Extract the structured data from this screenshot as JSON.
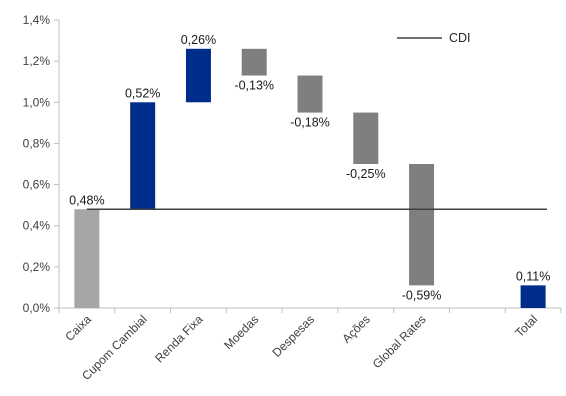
{
  "chart_data": {
    "type": "waterfall",
    "categories": [
      "Caixa",
      "Cupom Cambial",
      "Renda Fixa",
      "Moedas",
      "Despesas",
      "Ações",
      "Global Rates",
      "",
      "Total"
    ],
    "bars": [
      {
        "category": "Caixa",
        "start": 0.0,
        "end": 0.48,
        "value": 0.48,
        "label": "0,48%",
        "kind": "start"
      },
      {
        "category": "Cupom Cambial",
        "start": 0.48,
        "end": 1.0,
        "value": 0.52,
        "label": "0,52%",
        "kind": "up"
      },
      {
        "category": "Renda Fixa",
        "start": 1.0,
        "end": 1.26,
        "value": 0.26,
        "label": "0,26%",
        "kind": "up"
      },
      {
        "category": "Moedas",
        "start": 1.26,
        "end": 1.13,
        "value": -0.13,
        "label": "-0,13%",
        "kind": "down"
      },
      {
        "category": "Despesas",
        "start": 1.13,
        "end": 0.95,
        "value": -0.18,
        "label": "-0,18%",
        "kind": "down"
      },
      {
        "category": "Ações",
        "start": 0.95,
        "end": 0.7,
        "value": -0.25,
        "label": "-0,25%",
        "kind": "down"
      },
      {
        "category": "Global Rates",
        "start": 0.7,
        "end": 0.11,
        "value": -0.59,
        "label": "-0,59%",
        "kind": "down"
      },
      {
        "category": "Total",
        "start": 0.0,
        "end": 0.11,
        "value": 0.11,
        "label": "0,11%",
        "kind": "total"
      }
    ],
    "reference_line": {
      "name": "CDI",
      "value": 0.48
    },
    "ylim": [
      0,
      1.4
    ],
    "yticks": [
      "0,0%",
      "0,2%",
      "0,4%",
      "0,6%",
      "0,8%",
      "1,0%",
      "1,2%",
      "1,4%"
    ],
    "legend": {
      "position": "top-right",
      "entries": [
        "CDI"
      ]
    },
    "grid": false,
    "colors": {
      "start": "#a6a6a6",
      "up": "#002d8b",
      "down": "#7f7f7f",
      "total": "#002d8b",
      "line": "#404040",
      "axis": "#bfbfbf"
    }
  }
}
